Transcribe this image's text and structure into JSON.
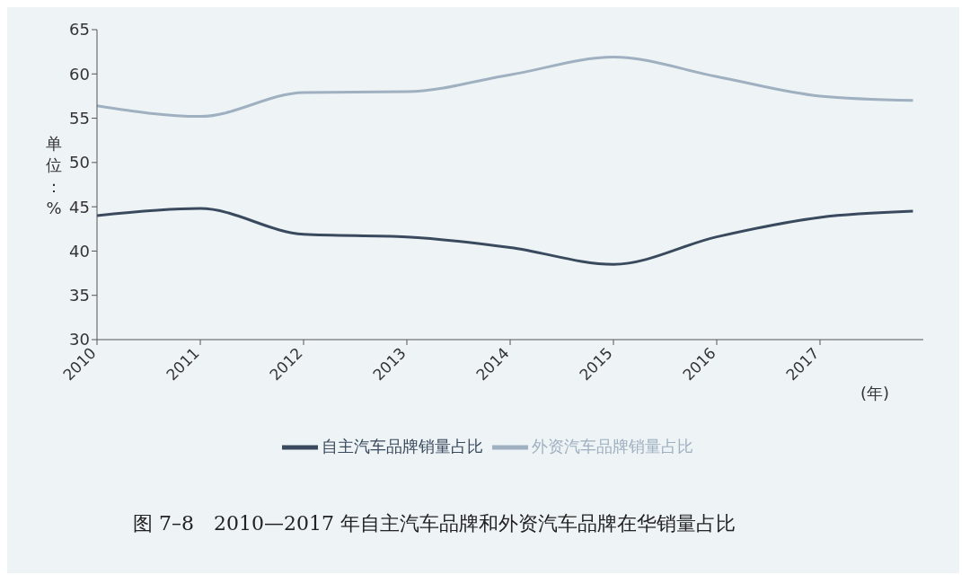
{
  "chart_data": {
    "type": "line",
    "title": "图 7–8　2010—2017 年自主汽车品牌和外资汽车品牌在华销量占比",
    "xlabel": "(年)",
    "ylabel": "单位：%",
    "x": [
      2010,
      2011,
      2012,
      2013,
      2014,
      2015,
      2016,
      2017,
      2017.9
    ],
    "xlim": [
      2010,
      2018
    ],
    "xticks": [
      2010,
      2011,
      2012,
      2013,
      2014,
      2015,
      2016,
      2017
    ],
    "ylim": [
      30,
      65
    ],
    "yticks": [
      30,
      35,
      40,
      45,
      50,
      55,
      60,
      65
    ],
    "series": [
      {
        "name": "自主汽车品牌销量占比",
        "color": "#3a4a5e",
        "values": [
          44.0,
          44.8,
          41.9,
          41.6,
          40.4,
          38.5,
          41.6,
          43.8,
          44.5
        ]
      },
      {
        "name": "外资汽车品牌销量占比",
        "color": "#9fb0c0",
        "values": [
          56.4,
          55.2,
          57.9,
          58.0,
          59.9,
          61.9,
          59.7,
          57.5,
          57.0
        ]
      }
    ],
    "grid": false,
    "legend": "bottom",
    "marker": "none",
    "line_style": "solid"
  }
}
